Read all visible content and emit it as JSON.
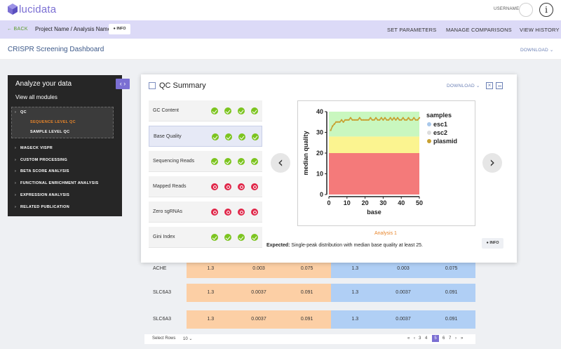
{
  "app": {
    "brand": "lucidata",
    "username": "USERNAME",
    "info_icon": "info-circle-icon"
  },
  "nav": {
    "back": "← BACK",
    "breadcrumb": "Project Name / Analysis Name",
    "info_chip": "INFO",
    "actions": [
      "SET PARAMETERS",
      "MANAGE COMPARISONS",
      "VIEW HISTORY"
    ]
  },
  "header": {
    "title": "CRISPR Screening Dashboard",
    "download": "DOWNLOAD"
  },
  "sidebar": {
    "title": "Analyze your data",
    "view_all": "View all modules",
    "qc": "QC",
    "qc_sub": [
      "SEQUENCE LEVEL QC",
      "SAMPLE LEVEL QC"
    ],
    "qc_sub_active_color": "#e8852a",
    "items": [
      "MAGECK VISPR",
      "CUSTOM PROCESSING",
      "BETA SCORE ANALYSIS",
      "FUNCTIONAL ENRICHMENT ANALYSIS",
      "EXPRESSION ANALYSIS",
      "RELATED PUBLICATION"
    ]
  },
  "modal": {
    "title": "QC Summary",
    "download": "DOWNLOAD",
    "rows": [
      {
        "label": "GC Content",
        "status": [
          "ok",
          "ok",
          "ok",
          "ok"
        ]
      },
      {
        "label": "Base Quality",
        "status": [
          "ok",
          "ok",
          "ok",
          "ok"
        ]
      },
      {
        "label": "Sequencing Reads",
        "status": [
          "ok",
          "ok",
          "ok",
          "ok"
        ]
      },
      {
        "label": "Mapped Reads",
        "status": [
          "bad",
          "bad",
          "bad",
          "bad"
        ]
      },
      {
        "label": "Zero sgRNAs",
        "status": [
          "bad",
          "bad",
          "bad",
          "bad"
        ]
      },
      {
        "label": "Gini Index",
        "status": [
          "ok",
          "ok",
          "ok",
          "ok"
        ]
      }
    ],
    "analysis_label": "Analysis 1",
    "expected_label": "Expected:",
    "expected_text": " Single-peak distribution with median base quality at least 25.",
    "info": "INFO"
  },
  "chart_data": {
    "type": "line",
    "xlabel": "base",
    "ylabel": "median quality",
    "xlim": [
      0,
      50
    ],
    "ylim": [
      0,
      40
    ],
    "xticks": [
      0,
      10,
      20,
      30,
      40,
      50
    ],
    "yticks": [
      0,
      10,
      20,
      30,
      40
    ],
    "bands": [
      {
        "from": 0,
        "to": 20,
        "color": "#f47a7a"
      },
      {
        "from": 20,
        "to": 28,
        "color": "#fbf490"
      },
      {
        "from": 28,
        "to": 40,
        "color": "#c9f7bf"
      }
    ],
    "legend_title": "samples",
    "legend_position": "right",
    "series": [
      {
        "name": "esc1",
        "color": "#a9c8ea",
        "x": [],
        "y": []
      },
      {
        "name": "esc2",
        "color": "#dddddd",
        "x": [],
        "y": []
      },
      {
        "name": "plasmid",
        "color": "#c8a030",
        "x": [
          1,
          2,
          3,
          4,
          5,
          6,
          7,
          8,
          9,
          10,
          11,
          12,
          13,
          14,
          15,
          16,
          17,
          18,
          19,
          20,
          21,
          22,
          23,
          24,
          25,
          26,
          27,
          28,
          29,
          30,
          31,
          32,
          33,
          34,
          35,
          36,
          37,
          38,
          39,
          40,
          41,
          42,
          43,
          44,
          45,
          46,
          47,
          48,
          49,
          50
        ],
        "y": [
          31,
          33,
          34,
          35,
          35,
          35,
          36,
          35,
          36,
          36,
          36,
          37,
          36,
          36,
          36,
          36,
          37,
          36,
          36,
          36,
          36,
          36,
          37,
          36,
          36,
          37,
          36,
          36,
          37,
          36,
          37,
          36,
          36,
          37,
          36,
          37,
          36,
          37,
          36,
          36,
          37,
          36,
          36,
          37,
          36,
          36,
          37,
          36,
          36,
          37
        ]
      }
    ],
    "legend_markers": [
      "esc1",
      "esc2",
      "plasmid"
    ]
  },
  "table": {
    "rows": [
      {
        "gene": "ACHE",
        "a": [
          "1.3",
          "0.003",
          "0.075"
        ],
        "b": [
          "1.3",
          "0.003",
          "0.075"
        ]
      },
      {
        "gene": "SLC6A3",
        "a": [
          "1.3",
          "0.0037",
          "0.091"
        ],
        "b": [
          "1.3",
          "0.0037",
          "0.091"
        ]
      },
      {
        "gene": "SLC6A3",
        "a": [
          "1.3",
          "0.0037",
          "0.091"
        ],
        "b": [
          "1.3",
          "0.0037",
          "0.091"
        ]
      }
    ],
    "select_rows_label": "Select Rows",
    "select_rows_value": "10 ⌄",
    "pager": [
      "«",
      "‹",
      "3",
      "4",
      "5",
      "6",
      "7",
      "›",
      "»"
    ],
    "active_page": "5"
  }
}
